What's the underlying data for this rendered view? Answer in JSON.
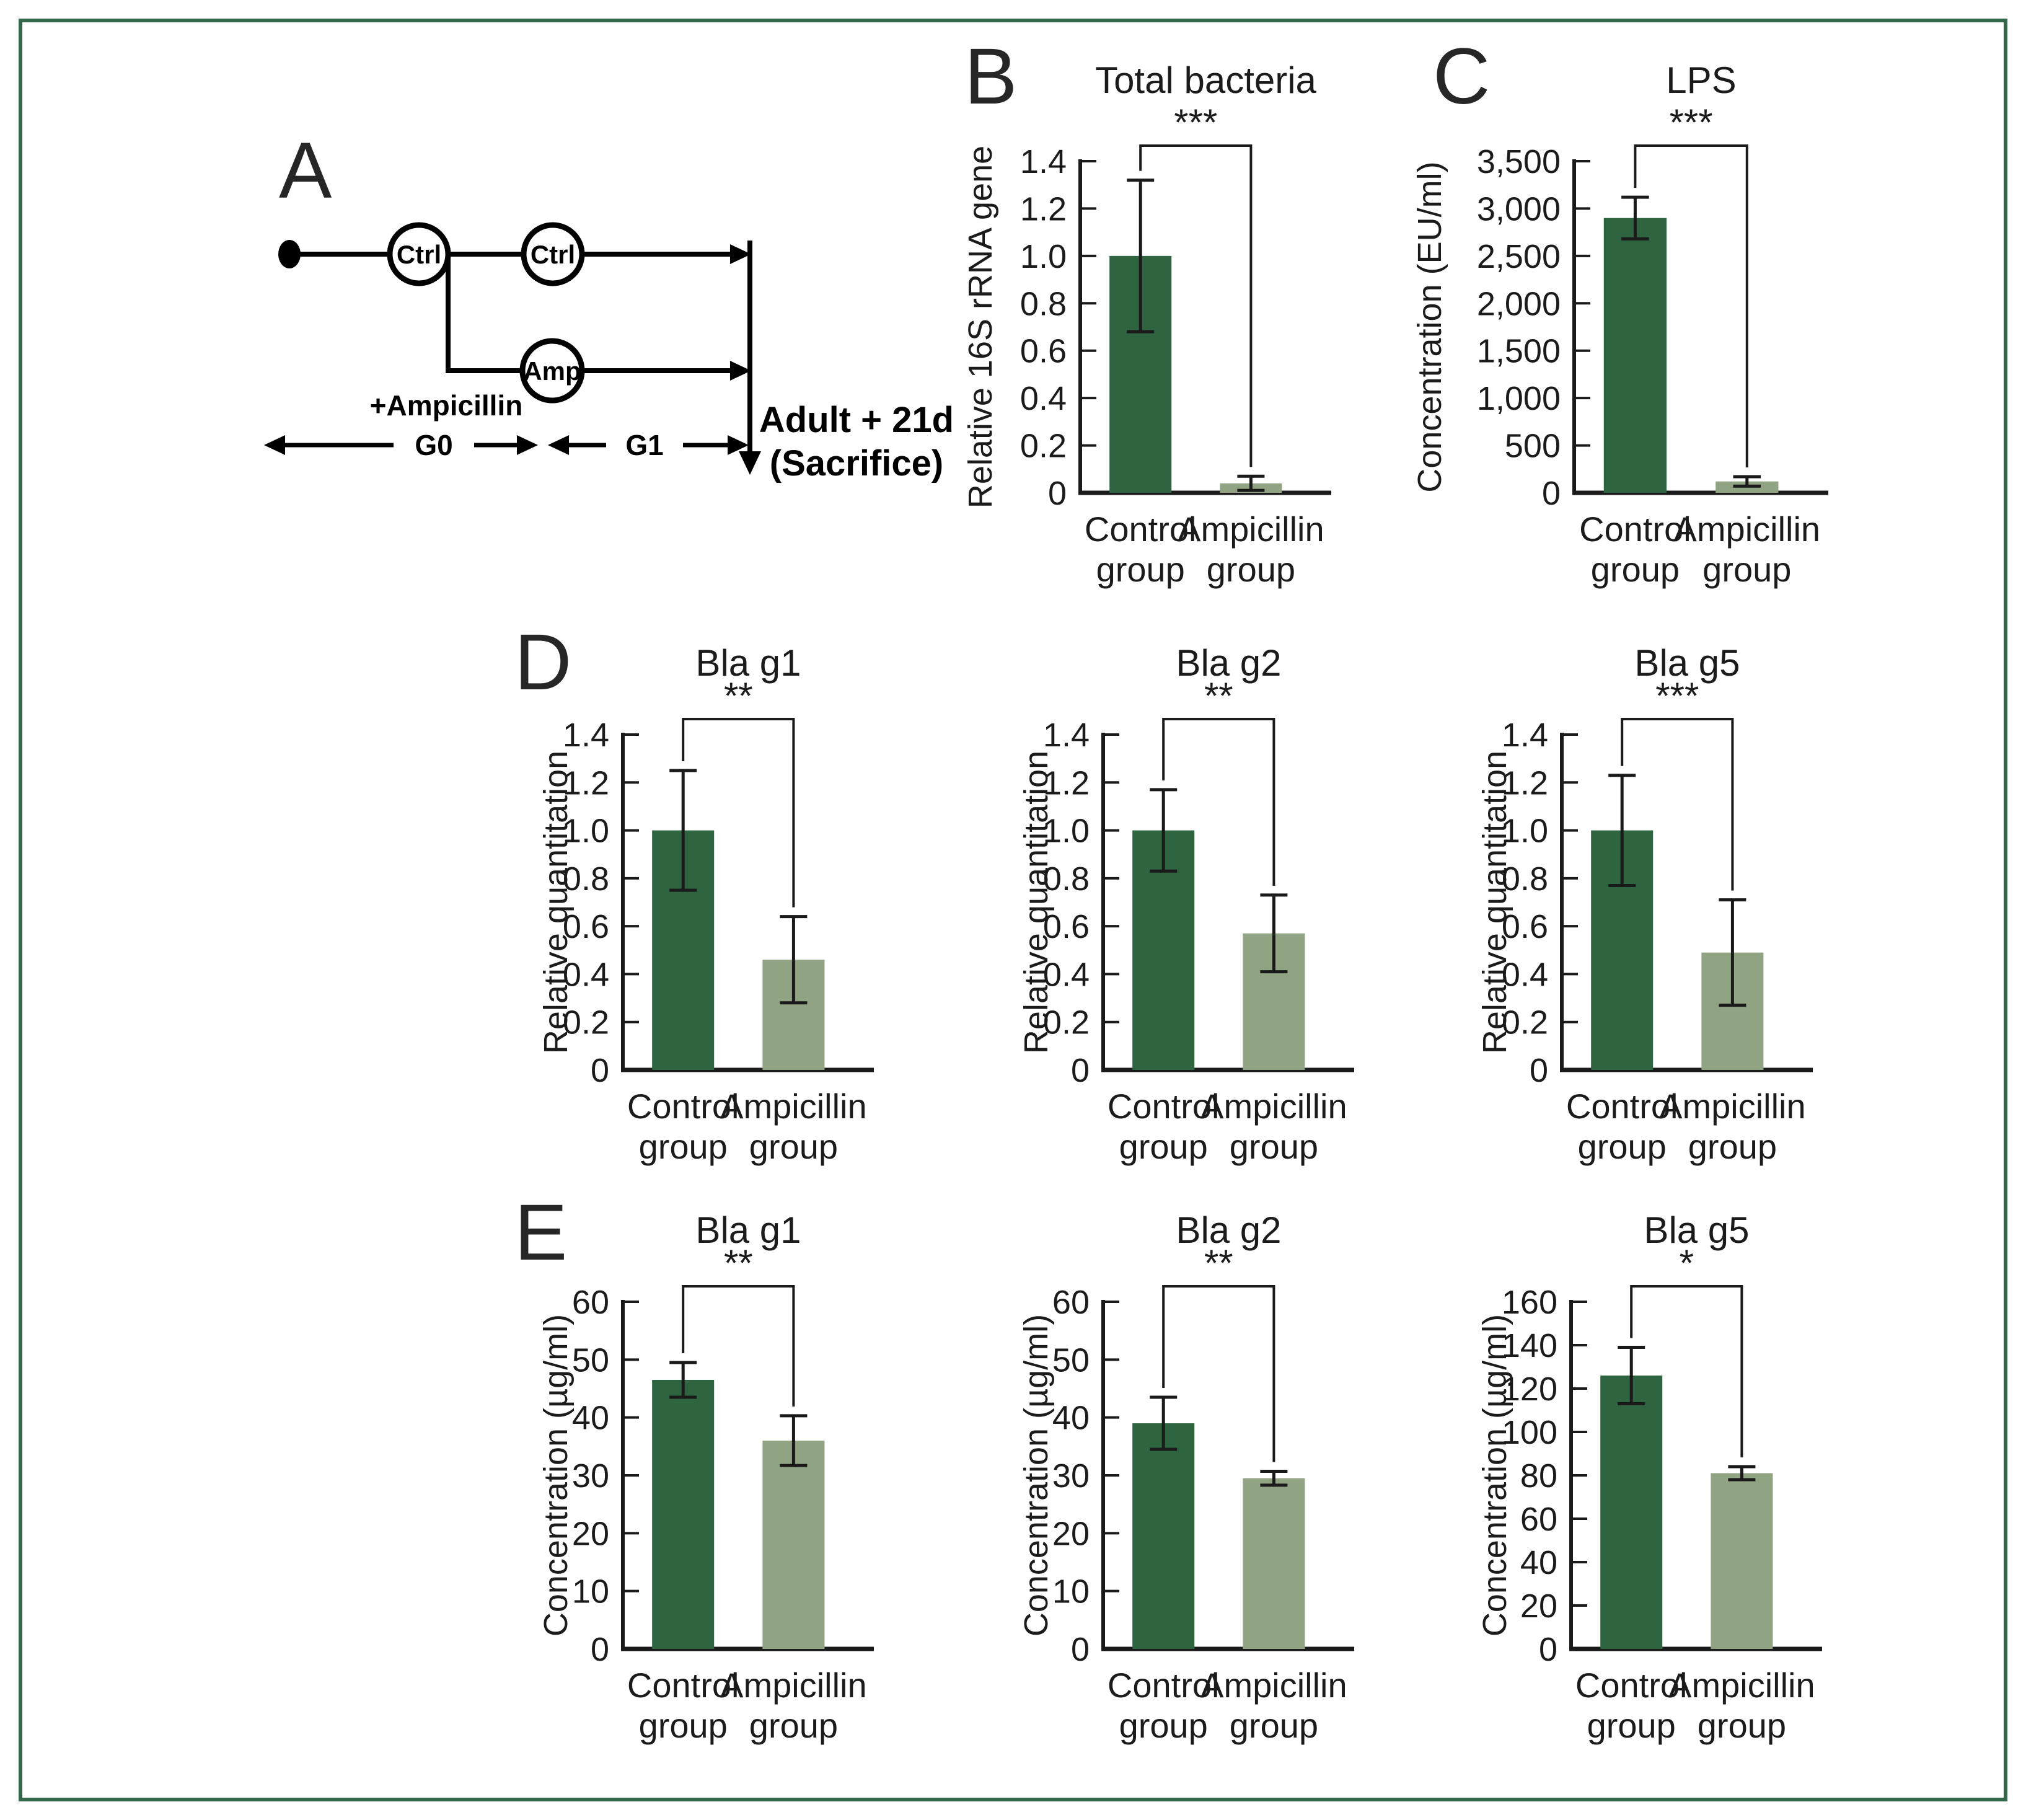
{
  "figure": {
    "border_color": "#35684a",
    "background": "#ffffff"
  },
  "panels": {
    "a": "A",
    "b": "B",
    "c": "C",
    "d": "D",
    "e": "E"
  },
  "panel_a": {
    "node_ctrl_g0": "Ctrl",
    "node_ctrl_g1": "Ctrl",
    "node_amp": "Amp",
    "treatment_label": "+Ampicillin",
    "generation0_label": "G0",
    "generation1_label": "G1",
    "endpoint_line1": "Adult + 21d",
    "endpoint_line2": "(Sacrifice)"
  },
  "colors": {
    "control_bar": "#2e6540",
    "ampicillin_bar": "#90a383",
    "axis": "#1a1a1a",
    "error_bar": "#1a1a1a",
    "text": "#1b1b1b"
  },
  "chart_data": [
    {
      "panel": "B",
      "type": "bar",
      "title": "Total bacteria",
      "ylabel": "Relative 16S rRNA gene",
      "categories": [
        "Control group",
        "Ampicillin group"
      ],
      "values": [
        1.0,
        0.04
      ],
      "errors": [
        0.32,
        0.03
      ],
      "significance": "***",
      "ylim": [
        0,
        1.4
      ],
      "yticks": [
        0,
        0.2,
        0.4,
        0.6,
        0.8,
        1.0,
        1.2,
        1.4
      ],
      "ytick_labels": [
        "0",
        "0.2",
        "0.4",
        "0.6",
        "0.8",
        "1.0",
        "1.2",
        "1.4"
      ],
      "grid": false,
      "legend": "none"
    },
    {
      "panel": "C",
      "type": "bar",
      "title": "LPS",
      "ylabel": "Concentration (EU/ml)",
      "categories": [
        "Control group",
        "Ampicillin group"
      ],
      "values": [
        2900,
        120
      ],
      "errors": [
        220,
        50
      ],
      "significance": "***",
      "ylim": [
        0,
        3500
      ],
      "yticks": [
        0,
        500,
        1000,
        1500,
        2000,
        2500,
        3000,
        3500
      ],
      "ytick_labels": [
        "0",
        "500",
        "1,000",
        "1,500",
        "2,000",
        "2,500",
        "3,000",
        "3,500"
      ],
      "grid": false,
      "legend": "none"
    },
    {
      "panel": "D",
      "type": "bar",
      "title": "Bla g1",
      "ylabel": "Relative quantitation",
      "categories": [
        "Control group",
        "Ampicillin group"
      ],
      "values": [
        1.0,
        0.46
      ],
      "errors": [
        0.25,
        0.18
      ],
      "significance": "**",
      "ylim": [
        0,
        1.4
      ],
      "yticks": [
        0,
        0.2,
        0.4,
        0.6,
        0.8,
        1.0,
        1.2,
        1.4
      ],
      "ytick_labels": [
        "0",
        "0.2",
        "0.4",
        "0.6",
        "0.8",
        "1.0",
        "1.2",
        "1.4"
      ],
      "grid": false,
      "legend": "none"
    },
    {
      "panel": "D",
      "type": "bar",
      "title": "Bla g2",
      "ylabel": "Relative quantitation",
      "categories": [
        "Control group",
        "Ampicillin group"
      ],
      "values": [
        1.0,
        0.57
      ],
      "errors": [
        0.17,
        0.16
      ],
      "significance": "**",
      "ylim": [
        0,
        1.4
      ],
      "yticks": [
        0,
        0.2,
        0.4,
        0.6,
        0.8,
        1.0,
        1.2,
        1.4
      ],
      "ytick_labels": [
        "0",
        "0.2",
        "0.4",
        "0.6",
        "0.8",
        "1.0",
        "1.2",
        "1.4"
      ],
      "grid": false,
      "legend": "none"
    },
    {
      "panel": "D",
      "type": "bar",
      "title": "Bla g5",
      "ylabel": "Relative quantitation",
      "categories": [
        "Control group",
        "Ampicillin group"
      ],
      "values": [
        1.0,
        0.49
      ],
      "errors": [
        0.23,
        0.22
      ],
      "significance": "***",
      "ylim": [
        0,
        1.4
      ],
      "yticks": [
        0,
        0.2,
        0.4,
        0.6,
        0.8,
        1.0,
        1.2,
        1.4
      ],
      "ytick_labels": [
        "0",
        "0.2",
        "0.4",
        "0.6",
        "0.8",
        "1.0",
        "1.2",
        "1.4"
      ],
      "grid": false,
      "legend": "none"
    },
    {
      "panel": "E",
      "type": "bar",
      "title": "Bla g1",
      "ylabel": "Concentration (µg/ml)",
      "categories": [
        "Control group",
        "Ampicillin group"
      ],
      "values": [
        46.5,
        36
      ],
      "errors": [
        3,
        4.3
      ],
      "significance": "**",
      "ylim": [
        0,
        60
      ],
      "yticks": [
        0,
        10,
        20,
        30,
        40,
        50,
        60
      ],
      "ytick_labels": [
        "0",
        "10",
        "20",
        "30",
        "40",
        "50",
        "60"
      ],
      "grid": false,
      "legend": "none"
    },
    {
      "panel": "E",
      "type": "bar",
      "title": "Bla g2",
      "ylabel": "Concentration (µg/ml)",
      "categories": [
        "Control group",
        "Ampicillin group"
      ],
      "values": [
        39,
        29.5
      ],
      "errors": [
        4.5,
        1.2
      ],
      "significance": "**",
      "ylim": [
        0,
        60
      ],
      "yticks": [
        0,
        10,
        20,
        30,
        40,
        50,
        60
      ],
      "ytick_labels": [
        "0",
        "10",
        "20",
        "30",
        "40",
        "50",
        "60"
      ],
      "grid": false,
      "legend": "none"
    },
    {
      "panel": "E",
      "type": "bar",
      "title": "Bla g5",
      "ylabel": "Concentration (µg/ml)",
      "categories": [
        "Control group",
        "Ampicillin group"
      ],
      "values": [
        126,
        81
      ],
      "errors": [
        13,
        3
      ],
      "significance": "*",
      "ylim": [
        0,
        160
      ],
      "yticks": [
        0,
        20,
        40,
        60,
        80,
        100,
        120,
        140,
        160
      ],
      "ytick_labels": [
        "0",
        "20",
        "40",
        "60",
        "80",
        "100",
        "120",
        "140",
        "160"
      ],
      "grid": false,
      "legend": "none"
    }
  ]
}
